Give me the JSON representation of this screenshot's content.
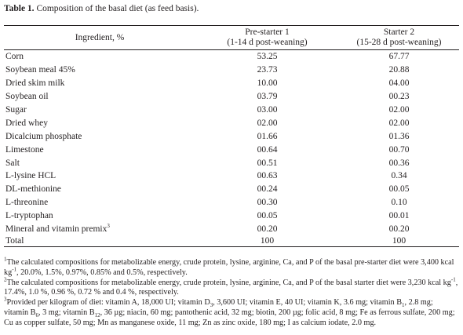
{
  "caption": {
    "label": "Table 1.",
    "text": "Composition of the basal diet (as feed basis)."
  },
  "table": {
    "headers": {
      "ingredient": "Ingredient, %",
      "pre_starter_line1": "Pre-starter 1",
      "pre_starter_line2": "(1-14 d post-weaning)",
      "starter_line1": "Starter 2",
      "starter_line2": "(15-28 d post-weaning)"
    },
    "rows": [
      {
        "ingredient": "Corn",
        "pre": "53.25",
        "starter": "67.77"
      },
      {
        "ingredient": "Soybean meal 45%",
        "pre": "23.73",
        "starter": "20.88"
      },
      {
        "ingredient": "Dried skim milk",
        "pre": "10.00",
        "starter": "04.00"
      },
      {
        "ingredient": "Soybean oil",
        "pre": "03.79",
        "starter": "00.23"
      },
      {
        "ingredient": "Sugar",
        "pre": "03.00",
        "starter": "02.00"
      },
      {
        "ingredient": "Dried whey",
        "pre": "02.00",
        "starter": "02.00"
      },
      {
        "ingredient": "Dicalcium phosphate",
        "pre": "01.66",
        "starter": "01.36"
      },
      {
        "ingredient": "Limestone",
        "pre": "00.64",
        "starter": "00.70"
      },
      {
        "ingredient": "Salt",
        "pre": "00.51",
        "starter": "00.36"
      },
      {
        "ingredient": "L-lysine HCL",
        "pre": "00.63",
        "starter": "0.34"
      },
      {
        "ingredient": "DL-methionine",
        "pre": "00.24",
        "starter": "00.05"
      },
      {
        "ingredient": "L-threonine",
        "pre": "00.30",
        "starter": "0.10"
      },
      {
        "ingredient": "L-tryptophan",
        "pre": "00.05",
        "starter": "00.01"
      },
      {
        "ingredient": "Mineral and vitamin premix",
        "ingredient_sup": "3",
        "pre": "00.20",
        "starter": "00.20"
      },
      {
        "ingredient": "Total",
        "pre": "100",
        "starter": "100"
      }
    ]
  },
  "footnotes": {
    "n1": {
      "mark": "1",
      "a": "The calculated compositions for metabolizable energy, crude protein, lysine, arginine, Ca, and P of the basal pre-starter diet were 3,400 kcal kg",
      "a_sup": "-1",
      "b": ", 20.0%, 1.5%, 0.97%, 0.85% and 0.5%, respectively."
    },
    "n2": {
      "mark": "2",
      "a": "The calculated compositions for metabolizable energy, crude protein, lysine, arginine, Ca, and P of the basal starter diet were 3,230 kcal kg",
      "a_sup": "-1",
      "b": ", 17.4%, 1.0 %, 0.96 %, 0.72 % and 0.4 %, respectively."
    },
    "n3": {
      "mark": "3",
      "t1": "Provided per kilogram of diet: vitamin A, 18,000 UI; vitamin D",
      "s1": "3",
      "t2": ", 3,600 UI; vitamin E, 40 UI; vitamin K, 3.6 mg; vitamin B",
      "s2": "1",
      "t3": ", 2.8 mg; vitamin B",
      "s3": "6",
      "t4": ", 3 mg; vitamin B",
      "s4": "12",
      "t5": ", 36 µg; niacin, 60 mg; pantothenic acid, 32 mg; biotin, 200 µg; folic acid, 8 mg; Fe as ferrous sulfate, 200 mg; Cu as copper sulfate, 50 mg; Mn as manganese oxide, 11 mg; Zn as zinc oxide, 180 mg; I as calcium iodate, 2.0 mg."
    }
  }
}
